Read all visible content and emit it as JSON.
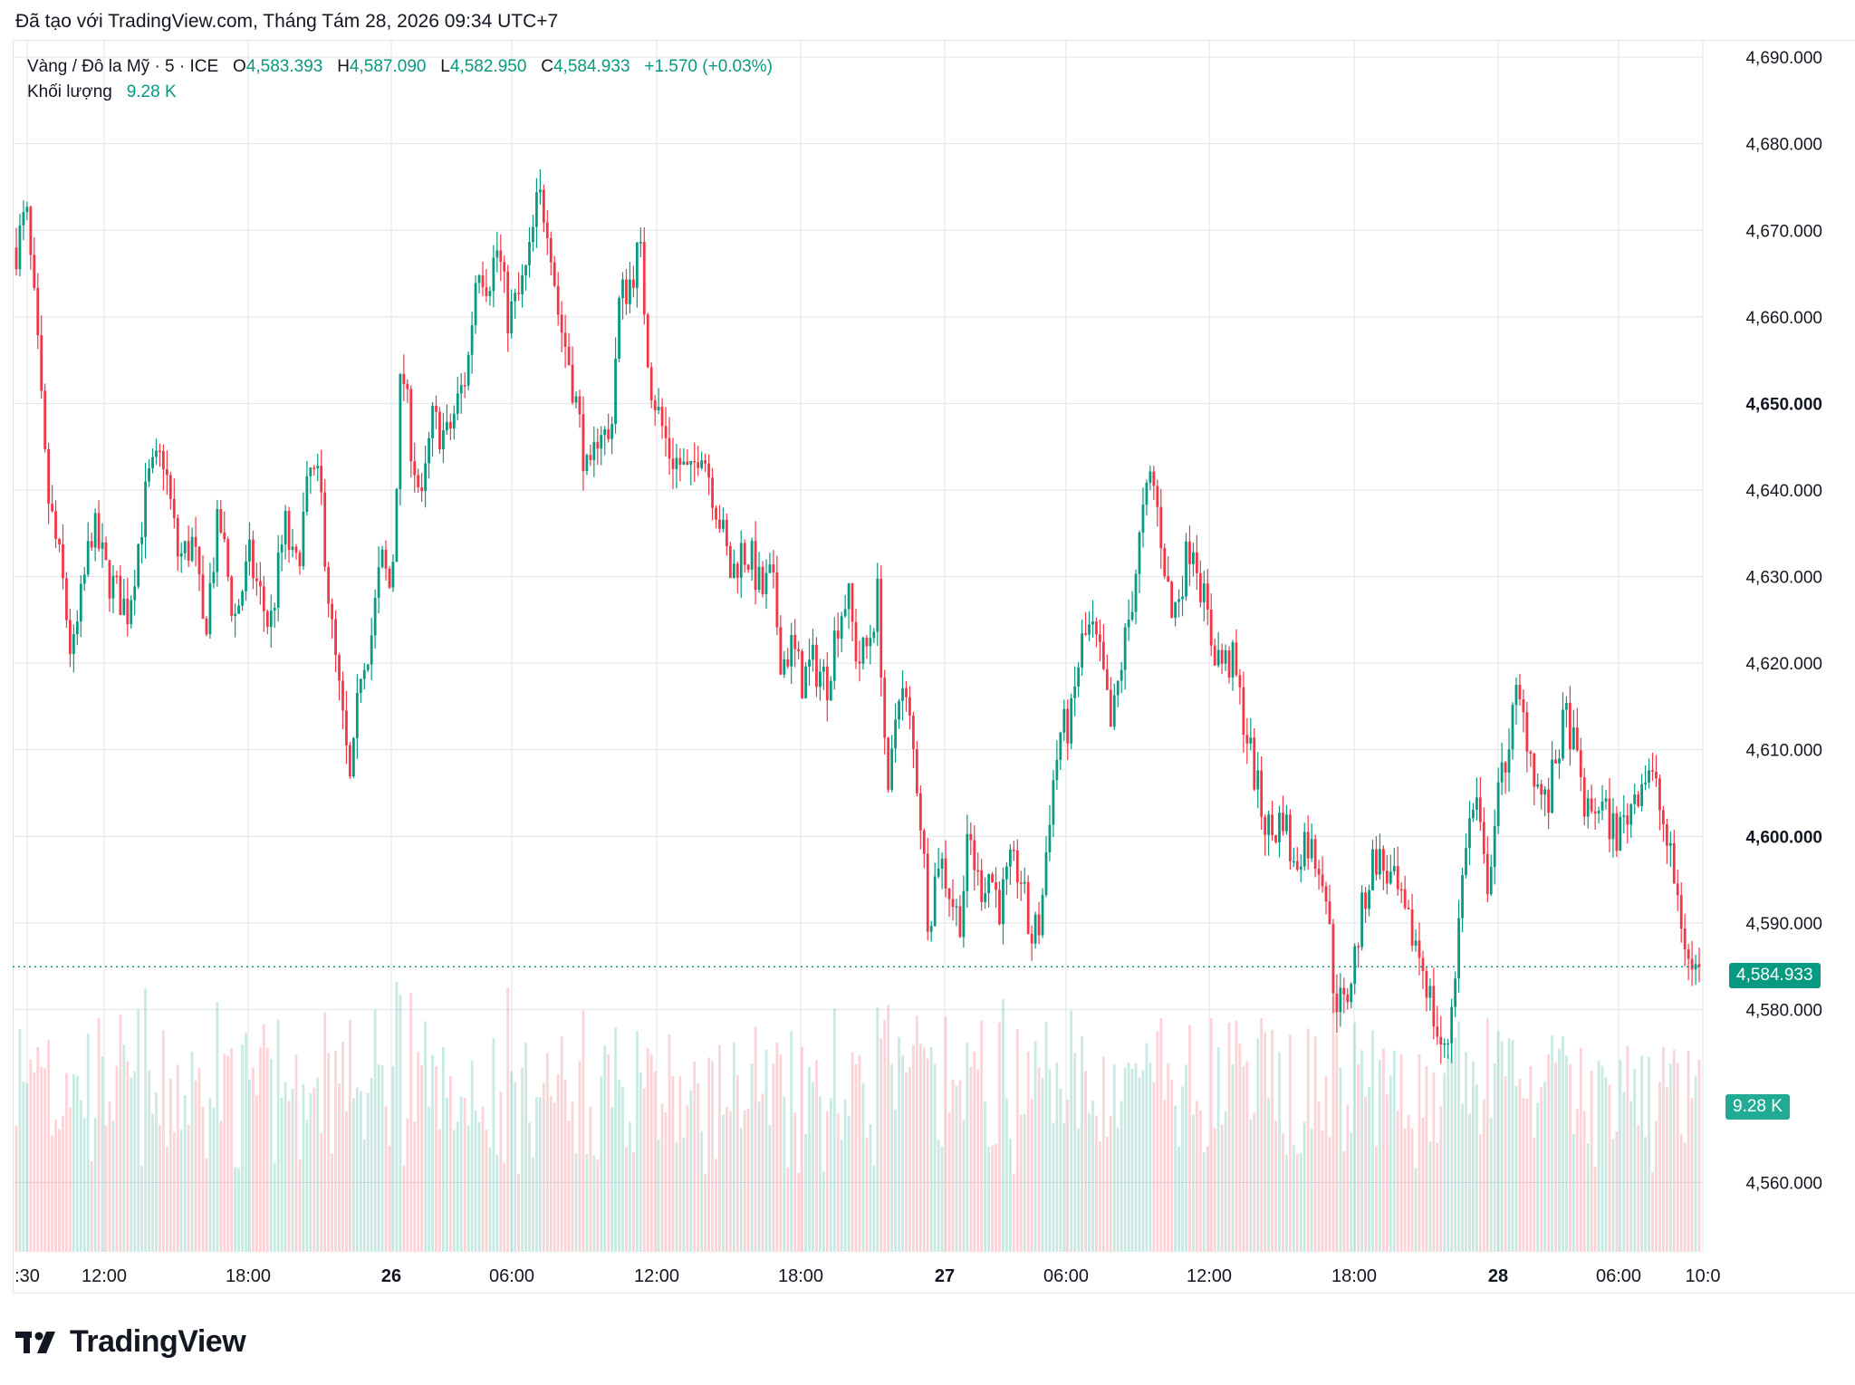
{
  "caption": "Đã tạo với TradingView.com, Tháng Tám 28, 2026 09:34 UTC+7",
  "legend": {
    "symbol": "Vàng / Đô la Mỹ · 5 · ICE",
    "open_label": "O",
    "open": "4,583.393",
    "high_label": "H",
    "high": "4,587.090",
    "low_label": "L",
    "low": "4,582.950",
    "close_label": "C",
    "close": "4,584.933",
    "change": "+1.570 (+0.03%)",
    "volume_label": "Khối lượng",
    "volume": "9.28 K"
  },
  "price_tag": "4,584.933",
  "volume_tag": "9.28 K",
  "brand": "TradingView",
  "colors": {
    "up": "#089981",
    "down": "#f23645",
    "grid": "#e0e3eb",
    "text": "#131722"
  },
  "chart_data": {
    "type": "candlestick",
    "symbol": "Vàng / Đô la Mỹ",
    "interval": "5",
    "ylim": [
      4552,
      4692
    ],
    "y_ticks": [
      "4,690.000",
      "4,680.000",
      "4,670.000",
      "4,660.000",
      "4,650.000",
      "4,640.000",
      "4,630.000",
      "4,620.000",
      "4,610.000",
      "4,600.000",
      "4,590.000",
      "4,580.000",
      "4,560.000"
    ],
    "y_tick_values": [
      4690,
      4680,
      4670,
      4660,
      4650,
      4640,
      4630,
      4620,
      4610,
      4600,
      4590,
      4580,
      4560
    ],
    "y_tick_bold": [
      "4,650.000",
      "4,600.000"
    ],
    "x_ticks": [
      ":30",
      "12:00",
      "18:00",
      "26",
      "06:00",
      "12:00",
      "18:00",
      "27",
      "06:00",
      "12:00",
      "18:00",
      "28",
      "06:00",
      "10:0"
    ],
    "x_tick_bold": [
      "26",
      "27",
      "28"
    ],
    "last_close": 4584.933,
    "last_volume": "9.28 K",
    "price_path": [
      [
        0,
        4668
      ],
      [
        2,
        4672
      ],
      [
        4,
        4658
      ],
      [
        6,
        4640
      ],
      [
        9,
        4630
      ],
      [
        11,
        4620
      ],
      [
        13,
        4628
      ],
      [
        15,
        4636
      ],
      [
        18,
        4630
      ],
      [
        22,
        4626
      ],
      [
        26,
        4641
      ],
      [
        29,
        4644
      ],
      [
        32,
        4632
      ],
      [
        35,
        4634
      ],
      [
        37,
        4623
      ],
      [
        40,
        4637
      ],
      [
        43,
        4625
      ],
      [
        46,
        4632
      ],
      [
        50,
        4624
      ],
      [
        53,
        4636
      ],
      [
        55,
        4630
      ],
      [
        58,
        4642
      ],
      [
        60,
        4640
      ],
      [
        62,
        4625
      ],
      [
        64,
        4615
      ],
      [
        66,
        4605
      ],
      [
        68,
        4620
      ],
      [
        70,
        4623
      ],
      [
        72,
        4632
      ],
      [
        74,
        4628
      ],
      [
        76,
        4655
      ],
      [
        78,
        4645
      ],
      [
        80,
        4638
      ],
      [
        82,
        4648
      ],
      [
        85,
        4646
      ],
      [
        87,
        4650
      ],
      [
        89,
        4654
      ],
      [
        91,
        4667
      ],
      [
        93,
        4664
      ],
      [
        95,
        4668
      ],
      [
        97,
        4660
      ],
      [
        99,
        4662
      ],
      [
        101,
        4666
      ],
      [
        103,
        4674
      ],
      [
        105,
        4671
      ],
      [
        107,
        4660
      ],
      [
        109,
        4655
      ],
      [
        111,
        4648
      ],
      [
        113,
        4640
      ],
      [
        115,
        4648
      ],
      [
        117,
        4645
      ],
      [
        119,
        4662
      ],
      [
        121,
        4664
      ],
      [
        123,
        4668
      ],
      [
        125,
        4653
      ],
      [
        127,
        4648
      ],
      [
        129,
        4644
      ],
      [
        131,
        4643
      ],
      [
        133,
        4641
      ],
      [
        135,
        4646
      ],
      [
        137,
        4641
      ],
      [
        139,
        4636
      ],
      [
        141,
        4630
      ],
      [
        143,
        4633
      ],
      [
        145,
        4632
      ],
      [
        147,
        4628
      ],
      [
        149,
        4630
      ],
      [
        151,
        4620
      ],
      [
        153,
        4622
      ],
      [
        155,
        4618
      ],
      [
        157,
        4620
      ],
      [
        160,
        4618
      ],
      [
        162,
        4625
      ],
      [
        164,
        4628
      ],
      [
        166,
        4620
      ],
      [
        168,
        4622
      ],
      [
        170,
        4628
      ],
      [
        172,
        4603
      ],
      [
        174,
        4618
      ],
      [
        176,
        4614
      ],
      [
        178,
        4605
      ],
      [
        180,
        4590
      ],
      [
        182,
        4598
      ],
      [
        184,
        4594
      ],
      [
        186,
        4590
      ],
      [
        188,
        4600
      ],
      [
        190,
        4594
      ],
      [
        192,
        4596
      ],
      [
        194,
        4592
      ],
      [
        196,
        4596
      ],
      [
        198,
        4596
      ],
      [
        200,
        4588
      ],
      [
        202,
        4590
      ],
      [
        204,
        4604
      ],
      [
        206,
        4612
      ],
      [
        208,
        4613
      ],
      [
        210,
        4622
      ],
      [
        212,
        4624
      ],
      [
        214,
        4620
      ],
      [
        216,
        4612
      ],
      [
        218,
        4620
      ],
      [
        220,
        4627
      ],
      [
        222,
        4636
      ],
      [
        224,
        4642
      ],
      [
        226,
        4634
      ],
      [
        228,
        4625
      ],
      [
        230,
        4630
      ],
      [
        232,
        4635
      ],
      [
        234,
        4628
      ],
      [
        236,
        4622
      ],
      [
        238,
        4620
      ],
      [
        240,
        4620
      ],
      [
        242,
        4614
      ],
      [
        244,
        4608
      ],
      [
        246,
        4602
      ],
      [
        248,
        4600
      ],
      [
        250,
        4603
      ],
      [
        252,
        4596
      ],
      [
        254,
        4600
      ],
      [
        256,
        4598
      ],
      [
        258,
        4596
      ],
      [
        260,
        4582
      ],
      [
        262,
        4580
      ],
      [
        264,
        4586
      ],
      [
        266,
        4593
      ],
      [
        268,
        4598
      ],
      [
        270,
        4596
      ],
      [
        272,
        4594
      ],
      [
        274,
        4590
      ],
      [
        276,
        4588
      ],
      [
        278,
        4584
      ],
      [
        280,
        4578
      ],
      [
        282,
        4574
      ],
      [
        284,
        4586
      ],
      [
        286,
        4600
      ],
      [
        288,
        4604
      ],
      [
        290,
        4594
      ],
      [
        292,
        4603
      ],
      [
        294,
        4610
      ],
      [
        296,
        4616
      ],
      [
        298,
        4612
      ],
      [
        300,
        4606
      ],
      [
        302,
        4603
      ],
      [
        304,
        4610
      ],
      [
        306,
        4614
      ],
      [
        308,
        4608
      ],
      [
        310,
        4602
      ],
      [
        312,
        4604
      ],
      [
        314,
        4602
      ],
      [
        316,
        4600
      ],
      [
        318,
        4603
      ],
      [
        320,
        4606
      ],
      [
        322,
        4608
      ],
      [
        324,
        4604
      ],
      [
        326,
        4598
      ],
      [
        328,
        4592
      ],
      [
        330,
        4585
      ],
      [
        332,
        4584
      ]
    ]
  }
}
